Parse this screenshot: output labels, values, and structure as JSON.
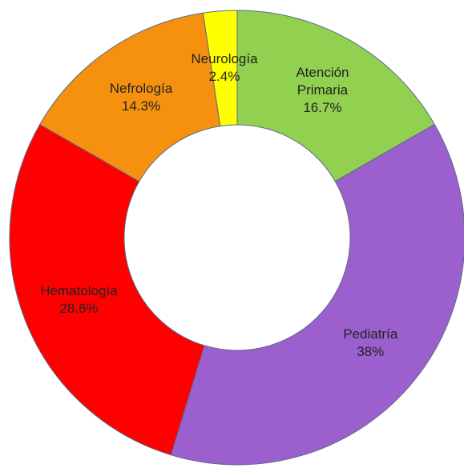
{
  "chart_data": {
    "type": "donut",
    "categories": [
      "Atención Primaria",
      "Pediatría",
      "Hematología",
      "Nefrología",
      "Neurología"
    ],
    "values": [
      16.7,
      38,
      28.6,
      14.3,
      2.4
    ],
    "value_labels": [
      "16.7%",
      "38%",
      "28.6%",
      "14.3%",
      "2.4%"
    ],
    "colors": [
      "#92d050",
      "#9b5fce",
      "#ff0000",
      "#f5910f",
      "#ffff00"
    ]
  }
}
